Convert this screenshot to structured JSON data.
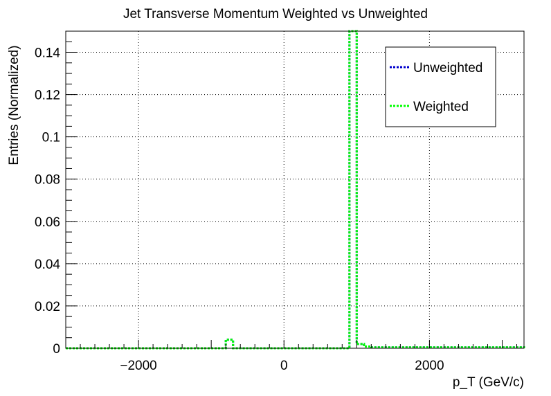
{
  "chart_data": {
    "type": "line",
    "title": "Jet Transverse Momentum Weighted vs Unweighted",
    "xlabel": "p_T (GeV/c)",
    "ylabel": "Entries (Normalized)",
    "xlim": [
      -3000,
      3300
    ],
    "ylim": [
      0,
      0.15
    ],
    "xticks": [
      -2000,
      0,
      2000
    ],
    "xtick_labels": [
      "−2000",
      "0",
      "2000"
    ],
    "yticks": [
      0,
      0.02,
      0.04,
      0.06,
      0.08,
      0.1,
      0.12,
      0.14
    ],
    "ytick_labels": [
      "0",
      "0.02",
      "0.04",
      "0.06",
      "0.08",
      "0.1",
      "0.12",
      "0.14"
    ],
    "grid": true,
    "legend_position": "top-right",
    "series": [
      {
        "name": "Unweighted",
        "color": "#0000cc",
        "style": "dotted-step",
        "x": [
          -3000,
          -900,
          -800,
          -700,
          800,
          900,
          1000,
          1100,
          1200,
          3300
        ],
        "values": [
          0,
          0,
          0.004,
          0,
          0,
          0.15,
          0.002,
          0.0008,
          0.0004,
          0
        ]
      },
      {
        "name": "Weighted",
        "color": "#00ff00",
        "style": "dotted-step",
        "x": [
          -3000,
          -900,
          -800,
          -700,
          800,
          900,
          1000,
          1100,
          1200,
          3300
        ],
        "values": [
          0,
          0,
          0.004,
          0,
          0,
          0.15,
          0.002,
          0.0008,
          0.0004,
          0
        ]
      }
    ]
  }
}
